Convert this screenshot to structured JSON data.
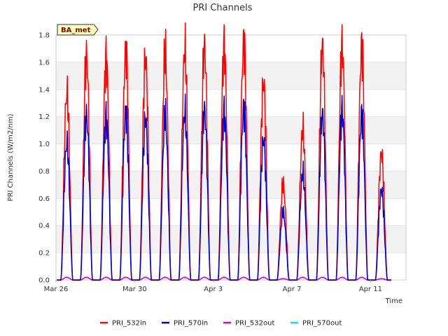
{
  "chart_data": {
    "type": "line",
    "title": "PRI Channels",
    "xlabel": "Time",
    "ylabel": "PRI Channels (W/m2/nm)",
    "ylim": [
      0,
      1.8
    ],
    "yticks": [
      "0.0",
      "0.2",
      "0.4",
      "0.6",
      "0.8",
      "1.0",
      "1.2",
      "1.4",
      "1.6",
      "1.8"
    ],
    "xlim_days": [
      0,
      17.8
    ],
    "xticks": [
      {
        "day": 0,
        "label": "Mar 26"
      },
      {
        "day": 4,
        "label": "Mar 30"
      },
      {
        "day": 8,
        "label": "Apr 3"
      },
      {
        "day": 12,
        "label": "Apr 7"
      },
      {
        "day": 16,
        "label": "Apr 11"
      }
    ],
    "annotation": "BA_met",
    "background_bands": true,
    "series": [
      {
        "name": "PRI_532in",
        "color": "#ff0000",
        "daily_peaks": [
          1.37,
          1.65,
          1.64,
          1.7,
          1.64,
          1.67,
          1.7,
          1.72,
          1.72,
          1.76,
          1.45,
          0.7,
          1.1,
          1.72,
          1.73,
          1.72,
          0.93
        ]
      },
      {
        "name": "PRI_570in",
        "color": "#0000cc",
        "daily_peaks": [
          1.0,
          1.21,
          1.2,
          1.24,
          1.19,
          1.21,
          1.23,
          1.25,
          1.24,
          1.27,
          1.03,
          0.5,
          0.78,
          1.22,
          1.25,
          1.22,
          0.66
        ]
      },
      {
        "name": "PRI_532out",
        "color": "#cc00cc",
        "daily_peaks": [
          0.02,
          0.02,
          0.02,
          0.02,
          0.02,
          0.02,
          0.02,
          0.02,
          0.02,
          0.02,
          0.02,
          0.01,
          0.02,
          0.02,
          0.02,
          0.02,
          0.01
        ]
      },
      {
        "name": "PRI_570out",
        "color": "#00e5ee",
        "daily_peaks": [
          0.02,
          0.02,
          0.02,
          0.02,
          0.02,
          0.02,
          0.02,
          0.02,
          0.02,
          0.02,
          0.02,
          0.01,
          0.02,
          0.02,
          0.02,
          0.02,
          0.01
        ]
      }
    ]
  }
}
